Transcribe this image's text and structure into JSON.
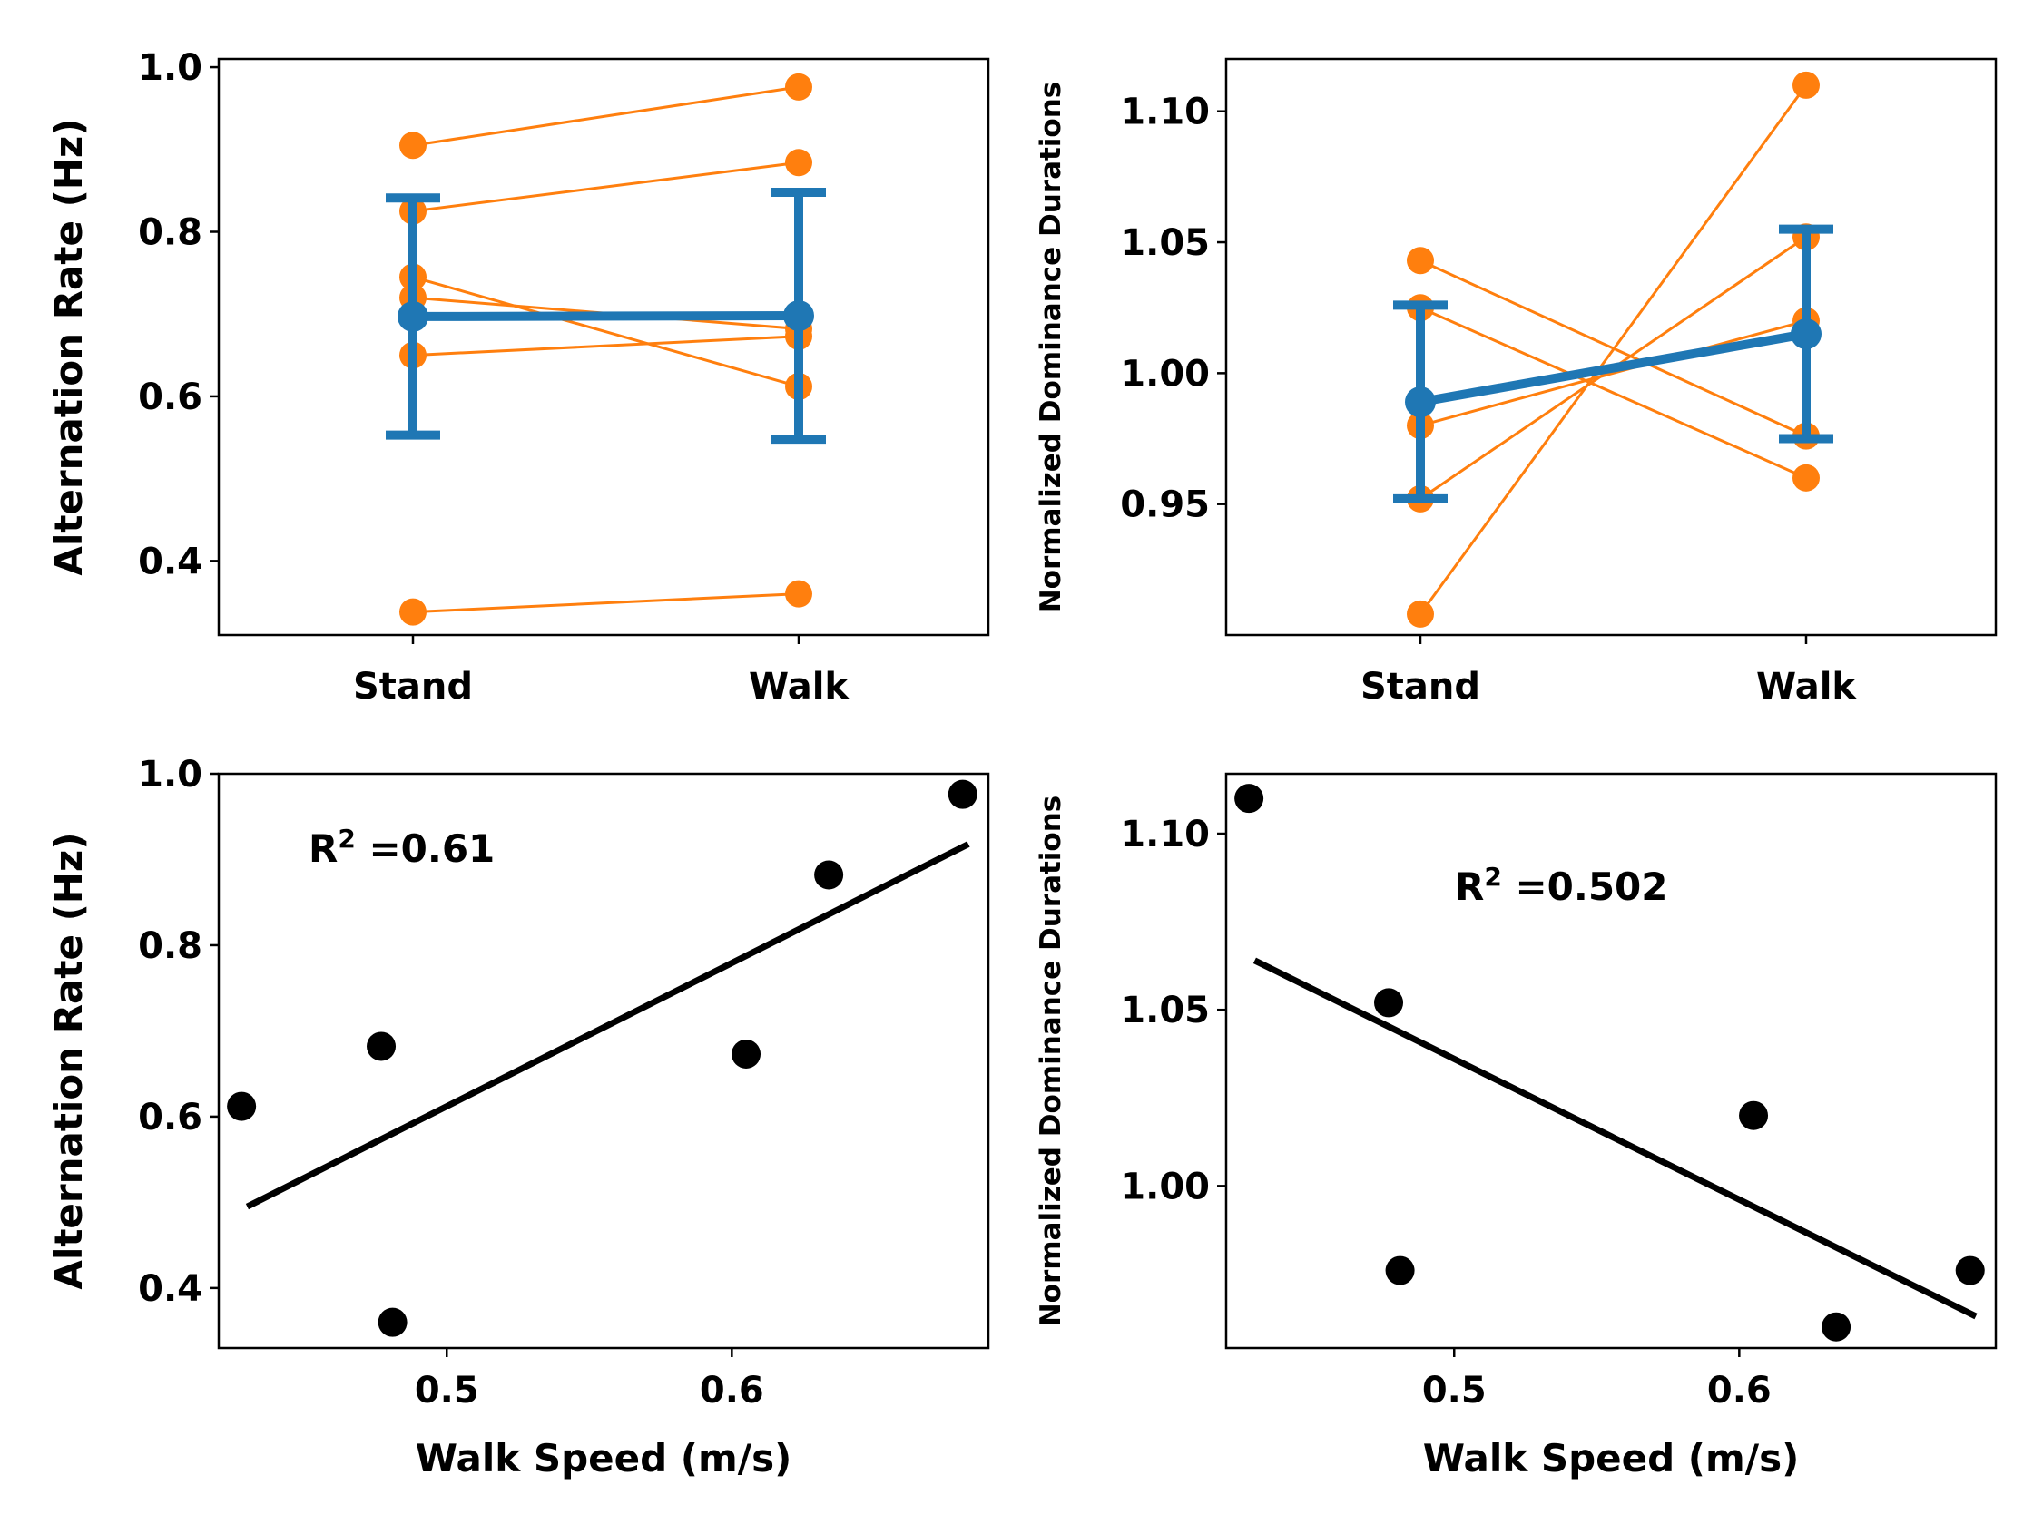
{
  "colors": {
    "subject": "#ff7f0e",
    "mean": "#1f77b4",
    "scatter": "#000000"
  },
  "chart_data": [
    {
      "type": "line",
      "categories": [
        "Stand",
        "Walk"
      ],
      "ylabel": "Alternation Rate (Hz)",
      "ylim": [
        0.31,
        1.01
      ],
      "yticks": [
        "0.4",
        "0.6",
        "0.8",
        "1.0"
      ],
      "subjects": [
        [
          0.905,
          0.976
        ],
        [
          0.825,
          0.884
        ],
        [
          0.745,
          0.612
        ],
        [
          0.72,
          0.682
        ],
        [
          0.65,
          0.673
        ],
        [
          0.338,
          0.36
        ]
      ],
      "mean": {
        "values": [
          0.697,
          0.698
        ],
        "error": [
          0.144,
          0.15
        ]
      }
    },
    {
      "type": "line",
      "categories": [
        "Stand",
        "Walk"
      ],
      "ylabel": "Normalized Dominance Durations",
      "ylim": [
        0.9,
        1.12
      ],
      "yticks": [
        "0.95",
        "1.00",
        "1.05",
        "1.10"
      ],
      "subjects": [
        [
          0.908,
          1.11
        ],
        [
          0.952,
          1.052
        ],
        [
          1.043,
          0.976
        ],
        [
          1.025,
          0.96
        ],
        [
          0.98,
          1.02
        ]
      ],
      "mean": {
        "values": [
          0.989,
          1.015
        ],
        "error": [
          0.037,
          0.04
        ]
      }
    },
    {
      "type": "scatter",
      "xlabel": "Walk Speed (m/s)",
      "ylabel": "Alternation Rate (Hz)",
      "xlim": [
        0.42,
        0.69
      ],
      "ylim": [
        0.33,
        1.0
      ],
      "xticks": [
        "0.5",
        "0.6"
      ],
      "yticks": [
        "0.4",
        "0.6",
        "0.8",
        "1.0"
      ],
      "points": [
        {
          "x": 0.428,
          "y": 0.612
        },
        {
          "x": 0.477,
          "y": 0.682
        },
        {
          "x": 0.481,
          "y": 0.36
        },
        {
          "x": 0.605,
          "y": 0.673
        },
        {
          "x": 0.634,
          "y": 0.882
        },
        {
          "x": 0.681,
          "y": 0.976
        }
      ],
      "fit": [
        {
          "x": 0.43,
          "y": 0.495
        },
        {
          "x": 0.683,
          "y": 0.918
        }
      ],
      "annotation": {
        "base": "R",
        "sup": "2",
        "rest": " =0.61"
      }
    },
    {
      "type": "scatter",
      "xlabel": "Walk Speed (m/s)",
      "ylabel": "Normalized Dominance Durations",
      "xlim": [
        0.42,
        0.69
      ],
      "ylim": [
        0.954,
        1.117
      ],
      "xticks": [
        "0.5",
        "0.6"
      ],
      "yticks": [
        "1.00",
        "1.05",
        "1.10"
      ],
      "points": [
        {
          "x": 0.428,
          "y": 1.11
        },
        {
          "x": 0.477,
          "y": 1.052
        },
        {
          "x": 0.481,
          "y": 0.976
        },
        {
          "x": 0.605,
          "y": 1.02
        },
        {
          "x": 0.634,
          "y": 0.96
        },
        {
          "x": 0.681,
          "y": 0.976
        }
      ],
      "fit": [
        {
          "x": 0.43,
          "y": 1.064
        },
        {
          "x": 0.683,
          "y": 0.963
        }
      ],
      "annotation": {
        "base": "R",
        "sup": "2",
        "rest": " =0.502"
      }
    }
  ]
}
